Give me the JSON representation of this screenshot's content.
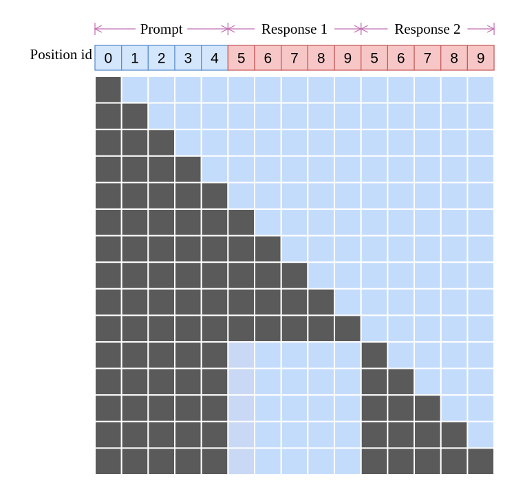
{
  "row_label": "Position id",
  "segments": [
    {
      "label": "Prompt",
      "kind": "prompt",
      "start": 0,
      "count": 5
    },
    {
      "label": "Response 1",
      "kind": "response",
      "start": 5,
      "count": 5
    },
    {
      "label": "Response 2",
      "kind": "response",
      "start": 10,
      "count": 5
    }
  ],
  "position_ids": [
    "0",
    "1",
    "2",
    "3",
    "4",
    "5",
    "6",
    "7",
    "8",
    "9",
    "5",
    "6",
    "7",
    "8",
    "9"
  ],
  "colors": {
    "bracket": "#c06cb0",
    "prompt_fill": "#d4e6fb",
    "prompt_border": "#5b8fce",
    "response_fill": "#f7c7c7",
    "response_border": "#c85a5a",
    "masked": "#5a5a5a",
    "unmasked": "#c4dcfb",
    "unmasked_alt": "#c9d8f4",
    "grid": "#ffffff"
  },
  "mask": [
    [
      1,
      0,
      0,
      0,
      0,
      0,
      0,
      0,
      0,
      0,
      0,
      0,
      0,
      0,
      0
    ],
    [
      1,
      1,
      0,
      0,
      0,
      0,
      0,
      0,
      0,
      0,
      0,
      0,
      0,
      0,
      0
    ],
    [
      1,
      1,
      1,
      0,
      0,
      0,
      0,
      0,
      0,
      0,
      0,
      0,
      0,
      0,
      0
    ],
    [
      1,
      1,
      1,
      1,
      0,
      0,
      0,
      0,
      0,
      0,
      0,
      0,
      0,
      0,
      0
    ],
    [
      1,
      1,
      1,
      1,
      1,
      0,
      0,
      0,
      0,
      0,
      0,
      0,
      0,
      0,
      0
    ],
    [
      1,
      1,
      1,
      1,
      1,
      1,
      0,
      0,
      0,
      0,
      0,
      0,
      0,
      0,
      0
    ],
    [
      1,
      1,
      1,
      1,
      1,
      1,
      1,
      0,
      0,
      0,
      0,
      0,
      0,
      0,
      0
    ],
    [
      1,
      1,
      1,
      1,
      1,
      1,
      1,
      1,
      0,
      0,
      0,
      0,
      0,
      0,
      0
    ],
    [
      1,
      1,
      1,
      1,
      1,
      1,
      1,
      1,
      1,
      0,
      0,
      0,
      0,
      0,
      0
    ],
    [
      1,
      1,
      1,
      1,
      1,
      1,
      1,
      1,
      1,
      1,
      0,
      0,
      0,
      0,
      0
    ],
    [
      1,
      1,
      1,
      1,
      1,
      0,
      0,
      0,
      0,
      0,
      1,
      0,
      0,
      0,
      0
    ],
    [
      1,
      1,
      1,
      1,
      1,
      0,
      0,
      0,
      0,
      0,
      1,
      1,
      0,
      0,
      0
    ],
    [
      1,
      1,
      1,
      1,
      1,
      0,
      0,
      0,
      0,
      0,
      1,
      1,
      1,
      0,
      0
    ],
    [
      1,
      1,
      1,
      1,
      1,
      0,
      0,
      0,
      0,
      0,
      1,
      1,
      1,
      1,
      0
    ],
    [
      1,
      1,
      1,
      1,
      1,
      0,
      0,
      0,
      0,
      0,
      1,
      1,
      1,
      1,
      1
    ]
  ]
}
